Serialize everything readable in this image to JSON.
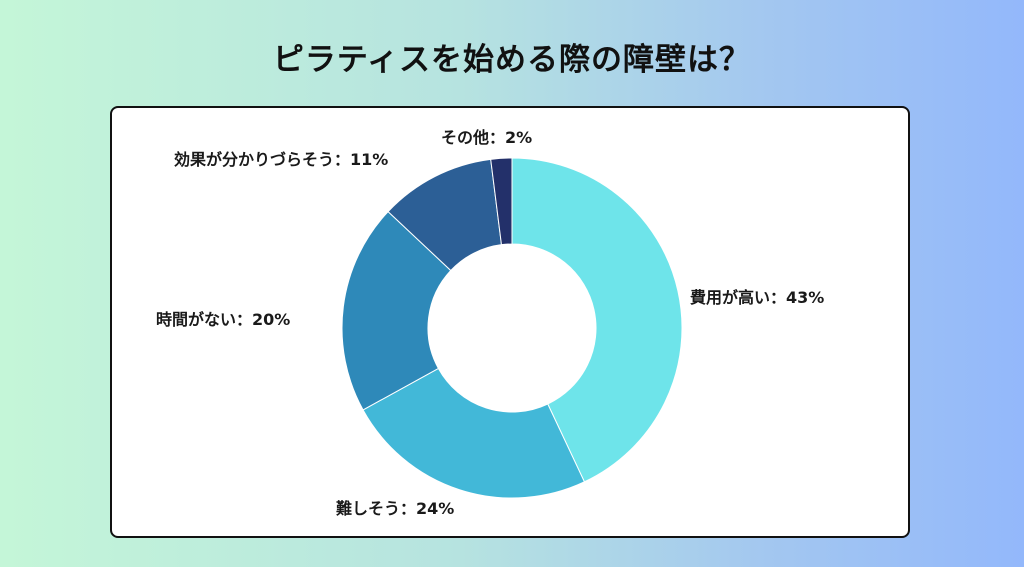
{
  "title": "ピラティスを始める際の障壁は？",
  "colors": {
    "background_start": "#c4f6d8",
    "background_end": "#93b8fb",
    "card": "#ffffff",
    "text": "#111111"
  },
  "chart_data": {
    "type": "pie",
    "donut": true,
    "title": "ピラティスを始める際の障壁は？",
    "start": "12 o'clock",
    "direction": "clockwise",
    "slices": [
      {
        "label": "費用が高い",
        "value": 43,
        "text": "費用が高い：43%",
        "color": "#6ee4ea"
      },
      {
        "label": "難しそう",
        "value": 24,
        "text": "難しそう：24%",
        "color": "#42b8d8"
      },
      {
        "label": "時間がない",
        "value": 20,
        "text": "時間がない：20%",
        "color": "#2e89b9"
      },
      {
        "label": "効果が分かりづらそう",
        "value": 11,
        "text": "効果が分かりづらそう：11%",
        "color": "#2c5f96"
      },
      {
        "label": "その他",
        "value": 2,
        "text": "その他：2%",
        "color": "#23306a"
      }
    ]
  }
}
